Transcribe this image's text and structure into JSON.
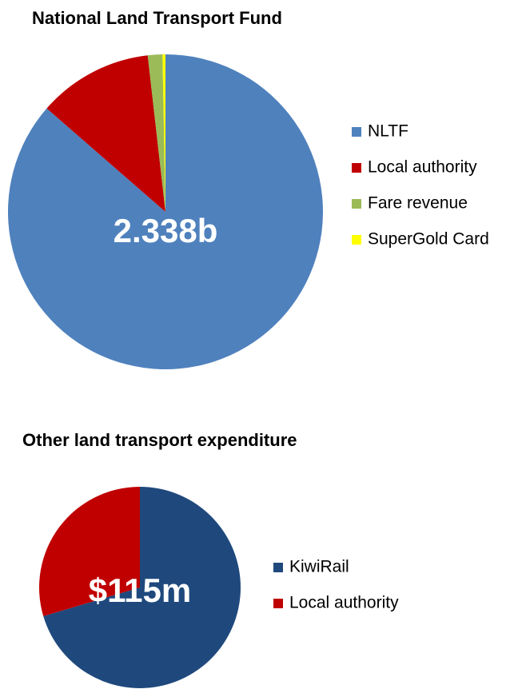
{
  "chart_data": [
    {
      "type": "pie",
      "title": "National Land Transport Fund",
      "annotation": "2.338b",
      "categories": [
        "NLTF",
        "Local authority",
        "Fare revenue",
        "SuperGold Card"
      ],
      "values": [
        86.4,
        11.8,
        1.5,
        0.3
      ],
      "colors": [
        "#4f81bd",
        "#c00000",
        "#9bbb59",
        "#ffff00"
      ]
    },
    {
      "type": "pie",
      "title": "Other land transport expenditure",
      "annotation": "$115m",
      "categories": [
        "KiwiRail",
        "Local authority"
      ],
      "values": [
        70.4,
        29.6
      ],
      "colors": [
        "#1f497d",
        "#c00000"
      ]
    }
  ]
}
